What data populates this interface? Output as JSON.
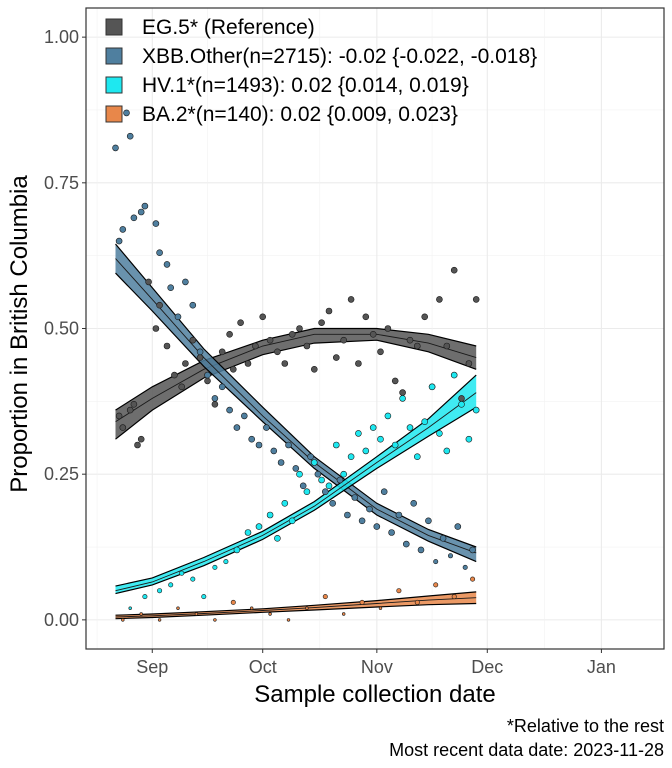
{
  "chart_data": {
    "type": "scatter",
    "xlabel": "Sample collection date",
    "ylabel": "Proportion in British Columbia",
    "xlim": [
      "2023-08-14",
      "2024-01-18"
    ],
    "ylim": [
      -0.05,
      1.05
    ],
    "grid": true,
    "legend_position": "top-left",
    "x_ticks": [
      {
        "date": "2023-09-01",
        "label": "Sep"
      },
      {
        "date": "2023-10-01",
        "label": "Oct"
      },
      {
        "date": "2023-11-01",
        "label": "Nov"
      },
      {
        "date": "2023-12-01",
        "label": "Dec"
      },
      {
        "date": "2024-01-01",
        "label": "Jan"
      }
    ],
    "y_ticks": [
      {
        "value": 0,
        "label": "0.00"
      },
      {
        "value": 0.25,
        "label": "0.25"
      },
      {
        "value": 0.5,
        "label": "0.50"
      },
      {
        "value": 0.75,
        "label": "0.75"
      },
      {
        "value": 1,
        "label": "1.00"
      }
    ],
    "series": [
      {
        "name": "EG.5* (Reference)",
        "color": "#555555",
        "fit": [
          {
            "x": "2023-08-22",
            "y": 0.34,
            "lo": 0.31,
            "hi": 0.36
          },
          {
            "x": "2023-09-01",
            "y": 0.38,
            "lo": 0.36,
            "hi": 0.4
          },
          {
            "x": "2023-09-15",
            "y": 0.43,
            "lo": 0.415,
            "hi": 0.445
          },
          {
            "x": "2023-10-01",
            "y": 0.47,
            "lo": 0.455,
            "hi": 0.48
          },
          {
            "x": "2023-10-15",
            "y": 0.49,
            "lo": 0.475,
            "hi": 0.5
          },
          {
            "x": "2023-11-01",
            "y": 0.49,
            "lo": 0.48,
            "hi": 0.5
          },
          {
            "x": "2023-11-15",
            "y": 0.475,
            "lo": 0.46,
            "hi": 0.49
          },
          {
            "x": "2023-11-28",
            "y": 0.45,
            "lo": 0.43,
            "hi": 0.47
          }
        ],
        "points": [
          [
            "2023-08-23",
            0.35
          ],
          [
            "2023-08-24",
            0.33
          ],
          [
            "2023-08-26",
            0.36
          ],
          [
            "2023-08-27",
            0.37
          ],
          [
            "2023-08-28",
            0.3
          ],
          [
            "2023-08-29",
            0.31
          ],
          [
            "2023-08-31",
            0.58
          ],
          [
            "2023-09-02",
            0.5
          ],
          [
            "2023-09-03",
            0.54
          ],
          [
            "2023-09-05",
            0.47
          ],
          [
            "2023-09-07",
            0.42
          ],
          [
            "2023-09-09",
            0.4
          ],
          [
            "2023-09-10",
            0.44
          ],
          [
            "2023-09-12",
            0.48
          ],
          [
            "2023-09-14",
            0.45
          ],
          [
            "2023-09-16",
            0.41
          ],
          [
            "2023-09-18",
            0.37
          ],
          [
            "2023-09-20",
            0.46
          ],
          [
            "2023-09-22",
            0.49
          ],
          [
            "2023-09-23",
            0.43
          ],
          [
            "2023-09-25",
            0.51
          ],
          [
            "2023-09-27",
            0.44
          ],
          [
            "2023-09-29",
            0.47
          ],
          [
            "2023-10-01",
            0.52
          ],
          [
            "2023-10-03",
            0.48
          ],
          [
            "2023-10-05",
            0.46
          ],
          [
            "2023-10-07",
            0.44
          ],
          [
            "2023-10-09",
            0.49
          ],
          [
            "2023-10-11",
            0.5
          ],
          [
            "2023-10-13",
            0.47
          ],
          [
            "2023-10-15",
            0.43
          ],
          [
            "2023-10-17",
            0.51
          ],
          [
            "2023-10-19",
            0.53
          ],
          [
            "2023-10-21",
            0.45
          ],
          [
            "2023-10-23",
            0.48
          ],
          [
            "2023-10-25",
            0.55
          ],
          [
            "2023-10-27",
            0.44
          ],
          [
            "2023-10-29",
            0.52
          ],
          [
            "2023-10-31",
            0.49
          ],
          [
            "2023-11-02",
            0.46
          ],
          [
            "2023-11-04",
            0.5
          ],
          [
            "2023-11-06",
            0.41
          ],
          [
            "2023-11-08",
            0.39
          ],
          [
            "2023-11-10",
            0.48
          ],
          [
            "2023-11-12",
            0.47
          ],
          [
            "2023-11-14",
            0.52
          ],
          [
            "2023-11-16",
            0.4
          ],
          [
            "2023-11-18",
            0.55
          ],
          [
            "2023-11-20",
            0.47
          ],
          [
            "2023-11-22",
            0.6
          ],
          [
            "2023-11-24",
            0.38
          ],
          [
            "2023-11-26",
            0.44
          ],
          [
            "2023-11-28",
            0.55
          ]
        ]
      },
      {
        "name": "XBB.Other(n=2715): -0.02 {-0.022, -0.018}",
        "color": "#4f7f9f",
        "fit": [
          {
            "x": "2023-08-22",
            "y": 0.62,
            "lo": 0.595,
            "hi": 0.645
          },
          {
            "x": "2023-09-01",
            "y": 0.55,
            "lo": 0.53,
            "hi": 0.57
          },
          {
            "x": "2023-09-15",
            "y": 0.45,
            "lo": 0.435,
            "hi": 0.465
          },
          {
            "x": "2023-10-01",
            "y": 0.35,
            "lo": 0.34,
            "hi": 0.365
          },
          {
            "x": "2023-10-15",
            "y": 0.27,
            "lo": 0.26,
            "hi": 0.28
          },
          {
            "x": "2023-11-01",
            "y": 0.19,
            "lo": 0.18,
            "hi": 0.2
          },
          {
            "x": "2023-11-15",
            "y": 0.145,
            "lo": 0.135,
            "hi": 0.155
          },
          {
            "x": "2023-11-28",
            "y": 0.115,
            "lo": 0.1,
            "hi": 0.125
          }
        ],
        "points": [
          [
            "2023-08-22",
            0.81
          ],
          [
            "2023-08-23",
            0.65
          ],
          [
            "2023-08-24",
            0.67
          ],
          [
            "2023-08-25",
            0.87
          ],
          [
            "2023-08-26",
            0.83
          ],
          [
            "2023-08-27",
            0.69
          ],
          [
            "2023-08-29",
            0.7
          ],
          [
            "2023-08-30",
            0.71
          ],
          [
            "2023-09-02",
            0.68
          ],
          [
            "2023-09-03",
            0.63
          ],
          [
            "2023-09-05",
            0.61
          ],
          [
            "2023-09-06",
            0.57
          ],
          [
            "2023-09-08",
            0.52
          ],
          [
            "2023-09-10",
            0.58
          ],
          [
            "2023-09-12",
            0.54
          ],
          [
            "2023-09-14",
            0.46
          ],
          [
            "2023-09-16",
            0.42
          ],
          [
            "2023-09-18",
            0.38
          ],
          [
            "2023-09-20",
            0.4
          ],
          [
            "2023-09-22",
            0.36
          ],
          [
            "2023-09-24",
            0.33
          ],
          [
            "2023-09-26",
            0.35
          ],
          [
            "2023-09-28",
            0.31
          ],
          [
            "2023-09-30",
            0.3
          ],
          [
            "2023-10-02",
            0.33
          ],
          [
            "2023-10-04",
            0.29
          ],
          [
            "2023-10-06",
            0.27
          ],
          [
            "2023-10-08",
            0.3
          ],
          [
            "2023-10-10",
            0.26
          ],
          [
            "2023-10-12",
            0.23
          ],
          [
            "2023-10-14",
            0.28
          ],
          [
            "2023-10-16",
            0.25
          ],
          [
            "2023-10-18",
            0.22
          ],
          [
            "2023-10-20",
            0.2
          ],
          [
            "2023-10-22",
            0.24
          ],
          [
            "2023-10-24",
            0.18
          ],
          [
            "2023-10-26",
            0.21
          ],
          [
            "2023-10-28",
            0.17
          ],
          [
            "2023-10-30",
            0.19
          ],
          [
            "2023-11-01",
            0.16
          ],
          [
            "2023-11-03",
            0.22
          ],
          [
            "2023-11-05",
            0.15
          ],
          [
            "2023-11-07",
            0.18
          ],
          [
            "2023-11-09",
            0.13
          ],
          [
            "2023-11-11",
            0.2
          ],
          [
            "2023-11-13",
            0.12
          ],
          [
            "2023-11-15",
            0.17
          ],
          [
            "2023-11-17",
            0.1
          ],
          [
            "2023-11-19",
            0.14
          ],
          [
            "2023-11-21",
            0.11
          ],
          [
            "2023-11-23",
            0.16
          ],
          [
            "2023-11-25",
            0.09
          ],
          [
            "2023-11-27",
            0.12
          ]
        ]
      },
      {
        "name": "HV.1*(n=1493): 0.02 {0.014, 0.019}",
        "color": "#1ee8f0",
        "fit": [
          {
            "x": "2023-08-22",
            "y": 0.05,
            "lo": 0.045,
            "hi": 0.058
          },
          {
            "x": "2023-09-01",
            "y": 0.065,
            "lo": 0.06,
            "hi": 0.072
          },
          {
            "x": "2023-09-15",
            "y": 0.1,
            "lo": 0.093,
            "hi": 0.107
          },
          {
            "x": "2023-10-01",
            "y": 0.145,
            "lo": 0.138,
            "hi": 0.152
          },
          {
            "x": "2023-10-15",
            "y": 0.195,
            "lo": 0.188,
            "hi": 0.203
          },
          {
            "x": "2023-11-01",
            "y": 0.27,
            "lo": 0.26,
            "hi": 0.28
          },
          {
            "x": "2023-11-15",
            "y": 0.33,
            "lo": 0.315,
            "hi": 0.345
          },
          {
            "x": "2023-11-28",
            "y": 0.39,
            "lo": 0.365,
            "hi": 0.42
          }
        ],
        "points": [
          [
            "2023-08-26",
            0.02
          ],
          [
            "2023-08-30",
            0.04
          ],
          [
            "2023-09-03",
            0.05
          ],
          [
            "2023-09-06",
            0.06
          ],
          [
            "2023-09-09",
            0.08
          ],
          [
            "2023-09-12",
            0.07
          ],
          [
            "2023-09-15",
            0.04
          ],
          [
            "2023-09-18",
            0.09
          ],
          [
            "2023-09-21",
            0.1
          ],
          [
            "2023-09-24",
            0.12
          ],
          [
            "2023-09-27",
            0.15
          ],
          [
            "2023-09-30",
            0.16
          ],
          [
            "2023-10-03",
            0.18
          ],
          [
            "2023-10-05",
            0.14
          ],
          [
            "2023-10-07",
            0.2
          ],
          [
            "2023-10-09",
            0.17
          ],
          [
            "2023-10-11",
            0.25
          ],
          [
            "2023-10-13",
            0.22
          ],
          [
            "2023-10-15",
            0.27
          ],
          [
            "2023-10-17",
            0.24
          ],
          [
            "2023-10-19",
            0.23
          ],
          [
            "2023-10-21",
            0.3
          ],
          [
            "2023-10-23",
            0.25
          ],
          [
            "2023-10-25",
            0.28
          ],
          [
            "2023-10-27",
            0.32
          ],
          [
            "2023-10-29",
            0.29
          ],
          [
            "2023-10-31",
            0.33
          ],
          [
            "2023-11-02",
            0.31
          ],
          [
            "2023-11-04",
            0.35
          ],
          [
            "2023-11-06",
            0.3
          ],
          [
            "2023-11-08",
            0.38
          ],
          [
            "2023-11-10",
            0.33
          ],
          [
            "2023-11-12",
            0.28
          ],
          [
            "2023-11-14",
            0.34
          ],
          [
            "2023-11-16",
            0.4
          ],
          [
            "2023-11-18",
            0.32
          ],
          [
            "2023-11-20",
            0.29
          ],
          [
            "2023-11-22",
            0.42
          ],
          [
            "2023-11-24",
            0.37
          ],
          [
            "2023-11-26",
            0.31
          ],
          [
            "2023-11-28",
            0.36
          ]
        ]
      },
      {
        "name": "BA.2*(n=140): 0.02 {0.009, 0.023}",
        "color": "#e8874a",
        "fit": [
          {
            "x": "2023-08-22",
            "y": 0.005,
            "lo": 0.002,
            "hi": 0.008
          },
          {
            "x": "2023-09-01",
            "y": 0.007,
            "lo": 0.004,
            "hi": 0.01
          },
          {
            "x": "2023-09-15",
            "y": 0.011,
            "lo": 0.008,
            "hi": 0.014
          },
          {
            "x": "2023-10-01",
            "y": 0.016,
            "lo": 0.013,
            "hi": 0.019
          },
          {
            "x": "2023-10-15",
            "y": 0.021,
            "lo": 0.017,
            "hi": 0.025
          },
          {
            "x": "2023-11-01",
            "y": 0.028,
            "lo": 0.022,
            "hi": 0.033
          },
          {
            "x": "2023-11-15",
            "y": 0.034,
            "lo": 0.026,
            "hi": 0.041
          },
          {
            "x": "2023-11-28",
            "y": 0.038,
            "lo": 0.028,
            "hi": 0.048
          }
        ],
        "points": [
          [
            "2023-08-24",
            0.0
          ],
          [
            "2023-08-29",
            0.01
          ],
          [
            "2023-09-03",
            0.0
          ],
          [
            "2023-09-08",
            0.02
          ],
          [
            "2023-09-13",
            0.01
          ],
          [
            "2023-09-18",
            0.0
          ],
          [
            "2023-09-23",
            0.03
          ],
          [
            "2023-09-28",
            0.02
          ],
          [
            "2023-10-03",
            0.01
          ],
          [
            "2023-10-08",
            0.0
          ],
          [
            "2023-10-13",
            0.02
          ],
          [
            "2023-10-18",
            0.04
          ],
          [
            "2023-10-23",
            0.01
          ],
          [
            "2023-10-28",
            0.03
          ],
          [
            "2023-11-02",
            0.02
          ],
          [
            "2023-11-07",
            0.05
          ],
          [
            "2023-11-12",
            0.03
          ],
          [
            "2023-11-17",
            0.06
          ],
          [
            "2023-11-22",
            0.04
          ],
          [
            "2023-11-27",
            0.07
          ]
        ]
      }
    ]
  },
  "captions": {
    "line1": "*Relative to the rest",
    "line2": "Most recent data date: 2023-11-28"
  }
}
